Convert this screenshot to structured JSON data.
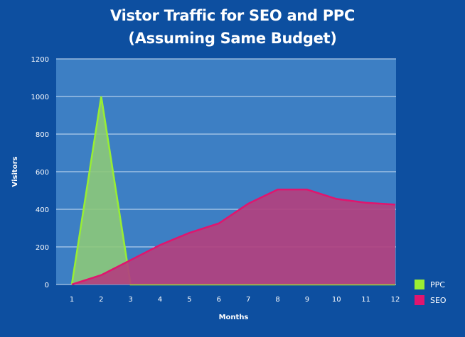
{
  "title_line1": "Vistor Traffic for SEO and PPC",
  "title_line2": "(Assuming Same Budget)",
  "colors": {
    "background": "#0d4fa0",
    "plot_area": "#3d7fc4",
    "ppc_fill": "#8cc97a",
    "ppc_line": "#99ee33",
    "seo_fill": "#b2407e",
    "seo_line": "#e0156e"
  },
  "legend": {
    "ppc_label": "PPC",
    "seo_label": "SEO"
  },
  "chart_data": {
    "type": "area",
    "xlabel": "Months",
    "ylabel": "Visitors",
    "x": [
      1,
      2,
      3,
      4,
      5,
      6,
      7,
      8,
      9,
      10,
      11,
      12
    ],
    "ylim": [
      0,
      1200
    ],
    "yticks": [
      0,
      200,
      400,
      600,
      800,
      1000,
      1200
    ],
    "grid": true,
    "legend_position": "bottom-right",
    "series": [
      {
        "name": "PPC",
        "values": [
          0,
          1000,
          0,
          0,
          0,
          0,
          0,
          0,
          0,
          0,
          0,
          0
        ]
      },
      {
        "name": "SEO",
        "values": [
          0,
          50,
          130,
          210,
          275,
          325,
          430,
          505,
          505,
          455,
          435,
          425
        ]
      }
    ]
  }
}
